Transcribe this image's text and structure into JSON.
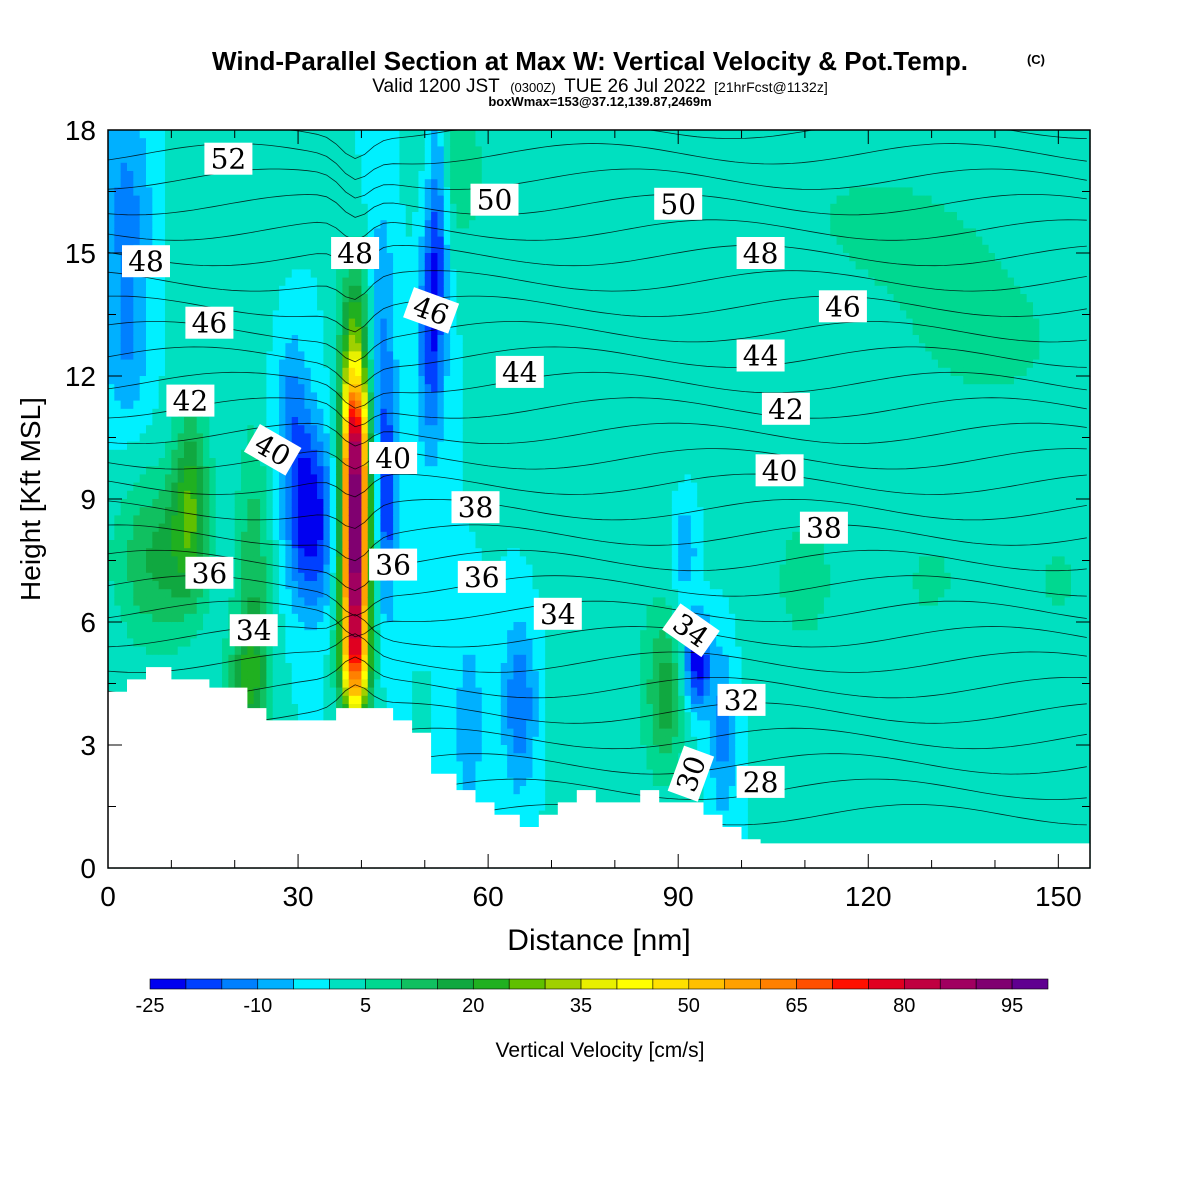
{
  "chart_data": {
    "type": "heatmap",
    "title": "Wind-Parallel Section at Max W: Vertical Velocity & Pot.Temp.",
    "title_mark": "(C)",
    "subtitle": {
      "valid_prefix": "Valid 1200 JST",
      "utc": "(0300Z)",
      "date": "TUE 26 Jul 2022",
      "forecast": "[21hrFcst@1132z]"
    },
    "box_info": "boxWmax=153@37.12,139.87,2469m",
    "xlabel": "Distance [nm]",
    "ylabel": "Height [Kft MSL]",
    "xlim": [
      0,
      155
    ],
    "ylim": [
      0,
      18
    ],
    "x_ticks": [
      0,
      30,
      60,
      90,
      120,
      150
    ],
    "y_ticks": [
      0,
      3,
      6,
      9,
      12,
      15,
      18
    ],
    "colorbar": {
      "label": "Vertical Velocity [cm/s]",
      "min": -25,
      "step": 5,
      "tick_labels": [
        -25,
        -10,
        5,
        20,
        35,
        50,
        65,
        80,
        95
      ],
      "colors": [
        "#0000f0",
        "#0040ff",
        "#0080ff",
        "#00b0ff",
        "#00f0ff",
        "#00e0c0",
        "#00d890",
        "#10c060",
        "#10a840",
        "#20b020",
        "#60c000",
        "#a0d000",
        "#e8f000",
        "#ffff00",
        "#ffe000",
        "#ffc000",
        "#ffa000",
        "#ff8000",
        "#ff5000",
        "#ff1000",
        "#e00020",
        "#c00040",
        "#a00060",
        "#800070",
        "#600090"
      ]
    },
    "background_w": 0,
    "w_features": [
      {
        "x": 39,
        "z": 7.5,
        "sx": 1.5,
        "sz": 2.4,
        "w": 95
      },
      {
        "x": 39,
        "z": 10.5,
        "sx": 1.4,
        "sz": 1.2,
        "w": 40
      },
      {
        "x": 39,
        "z": 13,
        "sx": 1.8,
        "sz": 1.5,
        "w": 20
      },
      {
        "x": 39,
        "z": 5,
        "sx": 1.8,
        "sz": 0.8,
        "w": 20
      },
      {
        "x": 8,
        "z": 7.5,
        "sx": 5,
        "sz": 1.5,
        "w": 16
      },
      {
        "x": 13,
        "z": 9,
        "sx": 2,
        "sz": 1.5,
        "w": 20
      },
      {
        "x": 23,
        "z": 7,
        "sx": 2,
        "sz": 2.5,
        "w": 14
      },
      {
        "x": 22,
        "z": 4.5,
        "sx": 2.5,
        "sz": 1,
        "w": 15
      },
      {
        "x": 88,
        "z": 4.2,
        "sx": 2,
        "sz": 1.3,
        "w": 16
      },
      {
        "x": 32,
        "z": 8.5,
        "sx": 2.5,
        "sz": 1.5,
        "w": -25
      },
      {
        "x": 29,
        "z": 11,
        "sx": 2,
        "sz": 1.5,
        "w": -12
      },
      {
        "x": 44,
        "z": 9,
        "sx": 1,
        "sz": 2,
        "w": -18
      },
      {
        "x": 43,
        "z": 13,
        "sx": 1.8,
        "sz": 2.5,
        "w": -10
      },
      {
        "x": 51,
        "z": 13,
        "sx": 1.5,
        "sz": 2,
        "w": -18
      },
      {
        "x": 52,
        "z": 16,
        "sx": 1.2,
        "sz": 2,
        "w": -15
      },
      {
        "x": 3,
        "z": 16,
        "sx": 3,
        "sz": 2,
        "w": -12
      },
      {
        "x": 3,
        "z": 12.5,
        "sx": 2.5,
        "sz": 1.2,
        "w": -8
      },
      {
        "x": 93,
        "z": 5,
        "sx": 1.5,
        "sz": 0.8,
        "w": -25
      },
      {
        "x": 91,
        "z": 7.8,
        "sx": 1.3,
        "sz": 0.8,
        "w": -12
      },
      {
        "x": 97,
        "z": 3.3,
        "sx": 1.5,
        "sz": 1.5,
        "w": -12
      },
      {
        "x": 65,
        "z": 4,
        "sx": 2,
        "sz": 1.5,
        "w": -15
      },
      {
        "x": 57,
        "z": 3.5,
        "sx": 1.5,
        "sz": 1.5,
        "w": -10
      },
      {
        "x": 80,
        "z": 6,
        "sx": 8,
        "sz": 4,
        "w": 4
      },
      {
        "x": 110,
        "z": 7,
        "sx": 6,
        "sz": 2,
        "w": 6
      },
      {
        "x": 130,
        "z": 7,
        "sx": 4,
        "sz": 1,
        "w": 6
      },
      {
        "x": 150,
        "z": 7,
        "sx": 3,
        "sz": 1,
        "w": 6
      },
      {
        "x": 140,
        "z": 12.5,
        "sx": 15,
        "sz": 2,
        "w": 5
      },
      {
        "x": 120,
        "z": 16,
        "sx": 20,
        "sz": 2,
        "w": 5
      },
      {
        "x": 140,
        "z": 1.3,
        "sx": 2,
        "sz": 1,
        "w": 5
      },
      {
        "x": 150,
        "z": 1.3,
        "sx": 1.5,
        "sz": 1,
        "w": 5
      },
      {
        "x": 18,
        "z": 16.5,
        "sx": 6,
        "sz": 3,
        "w": 5
      },
      {
        "x": 55,
        "z": 17,
        "sx": 4,
        "sz": 1.5,
        "w": 8
      }
    ],
    "terrain_kft": [
      [
        0,
        4.3
      ],
      [
        3,
        4.3
      ],
      [
        3,
        4.6
      ],
      [
        6,
        4.6
      ],
      [
        6,
        4.9
      ],
      [
        10,
        4.9
      ],
      [
        10,
        4.6
      ],
      [
        16,
        4.6
      ],
      [
        16,
        4.4
      ],
      [
        22,
        4.4
      ],
      [
        22,
        3.9
      ],
      [
        25,
        3.9
      ],
      [
        25,
        3.6
      ],
      [
        36,
        3.6
      ],
      [
        36,
        3.9
      ],
      [
        45,
        3.9
      ],
      [
        45,
        3.6
      ],
      [
        48,
        3.6
      ],
      [
        48,
        3.3
      ],
      [
        51,
        3.3
      ],
      [
        51,
        2.3
      ],
      [
        55,
        2.3
      ],
      [
        55,
        1.9
      ],
      [
        58,
        1.9
      ],
      [
        58,
        1.6
      ],
      [
        61,
        1.6
      ],
      [
        61,
        1.3
      ],
      [
        65,
        1.3
      ],
      [
        65,
        1
      ],
      [
        68,
        1
      ],
      [
        68,
        1.3
      ],
      [
        71,
        1.3
      ],
      [
        71,
        1.6
      ],
      [
        74,
        1.6
      ],
      [
        74,
        1.9
      ],
      [
        77,
        1.9
      ],
      [
        77,
        1.6
      ],
      [
        84,
        1.6
      ],
      [
        84,
        1.9
      ],
      [
        87,
        1.9
      ],
      [
        87,
        1.6
      ],
      [
        94,
        1.6
      ],
      [
        94,
        1.3
      ],
      [
        97,
        1.3
      ],
      [
        97,
        1
      ],
      [
        100,
        1
      ],
      [
        100,
        0.7
      ],
      [
        103,
        0.7
      ],
      [
        103,
        0.6
      ],
      [
        155,
        0.6
      ]
    ],
    "theta_contour_labels": [
      {
        "text": "52",
        "x": 19,
        "z": 17.3,
        "rot": 0
      },
      {
        "text": "50",
        "x": 61,
        "z": 16.3,
        "rot": 0
      },
      {
        "text": "50",
        "x": 90,
        "z": 16.2,
        "rot": 0
      },
      {
        "text": "48",
        "x": 6,
        "z": 14.8,
        "rot": 0
      },
      {
        "text": "48",
        "x": 39,
        "z": 15,
        "rot": 0
      },
      {
        "text": "48",
        "x": 103,
        "z": 15,
        "rot": 0
      },
      {
        "text": "46",
        "x": 16,
        "z": 13.3,
        "rot": 0
      },
      {
        "text": "46",
        "x": 51,
        "z": 13.6,
        "rot": 20
      },
      {
        "text": "46",
        "x": 116,
        "z": 13.7,
        "rot": 0
      },
      {
        "text": "44",
        "x": 65,
        "z": 12.1,
        "rot": 0
      },
      {
        "text": "44",
        "x": 103,
        "z": 12.5,
        "rot": 0
      },
      {
        "text": "42",
        "x": 13,
        "z": 11.4,
        "rot": 0
      },
      {
        "text": "42",
        "x": 107,
        "z": 11.2,
        "rot": 0
      },
      {
        "text": "40",
        "x": 26,
        "z": 10.2,
        "rot": 30
      },
      {
        "text": "40",
        "x": 45,
        "z": 10,
        "rot": 0
      },
      {
        "text": "40",
        "x": 106,
        "z": 9.7,
        "rot": 0
      },
      {
        "text": "38",
        "x": 58,
        "z": 8.8,
        "rot": 0
      },
      {
        "text": "38",
        "x": 113,
        "z": 8.3,
        "rot": 0
      },
      {
        "text": "36",
        "x": 16,
        "z": 7.2,
        "rot": 0
      },
      {
        "text": "36",
        "x": 45,
        "z": 7.4,
        "rot": 0
      },
      {
        "text": "36",
        "x": 59,
        "z": 7.1,
        "rot": 0
      },
      {
        "text": "34",
        "x": 23,
        "z": 5.8,
        "rot": 0
      },
      {
        "text": "34",
        "x": 71,
        "z": 6.2,
        "rot": 0
      },
      {
        "text": "34",
        "x": 92,
        "z": 5.8,
        "rot": 35
      },
      {
        "text": "32",
        "x": 100,
        "z": 4.1,
        "rot": 0
      },
      {
        "text": "30",
        "x": 92,
        "z": 2.3,
        "rot": -70
      },
      {
        "text": "28",
        "x": 103,
        "z": 2.1,
        "rot": 0
      }
    ]
  }
}
